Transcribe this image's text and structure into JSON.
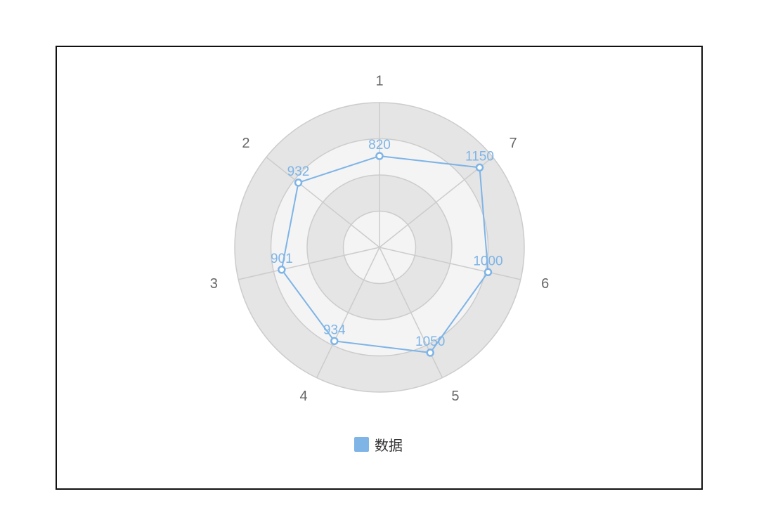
{
  "chart_data": {
    "type": "radar",
    "indicators": [
      "1",
      "2",
      "3",
      "4",
      "5",
      "6",
      "7"
    ],
    "rmax": 1300,
    "series": [
      {
        "name": "数据",
        "values": [
          820,
          932,
          901,
          934,
          1050,
          1000,
          1150
        ]
      }
    ],
    "show_value_labels": true,
    "legend_position": "bottom-center",
    "colors": {
      "series": "#7eb4e6",
      "band_dark": "#e5e5e5",
      "band_light": "#f4f4f4",
      "grid_line": "#cccccc",
      "axis_label": "#666666"
    }
  }
}
